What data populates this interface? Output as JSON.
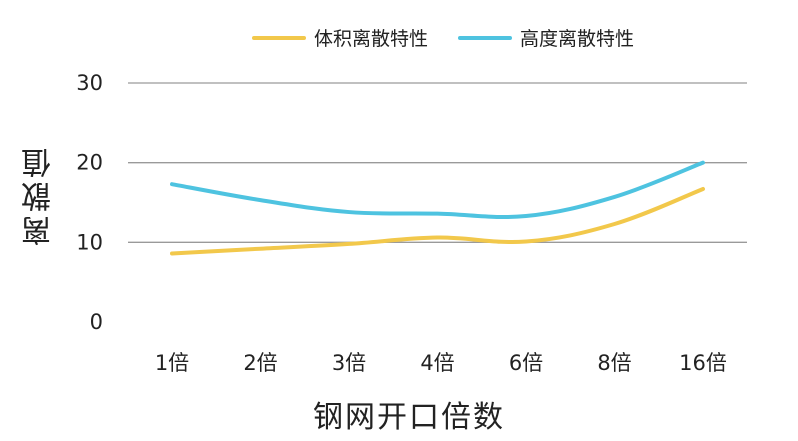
{
  "chart_data": {
    "type": "line",
    "xlabel": "钢网开口倍数",
    "ylabel": "离散值",
    "categories": [
      "1倍",
      "2倍",
      "3倍",
      "4倍",
      "6倍",
      "8倍",
      "16倍"
    ],
    "ylim": [
      0,
      30
    ],
    "yticks": [
      "0",
      "10",
      "20",
      "30"
    ],
    "grid": true,
    "legend_position": "top-center",
    "series": [
      {
        "name": "体积离散特性",
        "color": "#F2C84B",
        "values": [
          8.6,
          9.2,
          9.8,
          10.6,
          10.1,
          12.3,
          16.7
        ]
      },
      {
        "name": "高度离散特性",
        "color": "#4EC3E0",
        "values": [
          17.3,
          15.3,
          13.8,
          13.6,
          13.3,
          15.7,
          20.0
        ]
      }
    ]
  }
}
